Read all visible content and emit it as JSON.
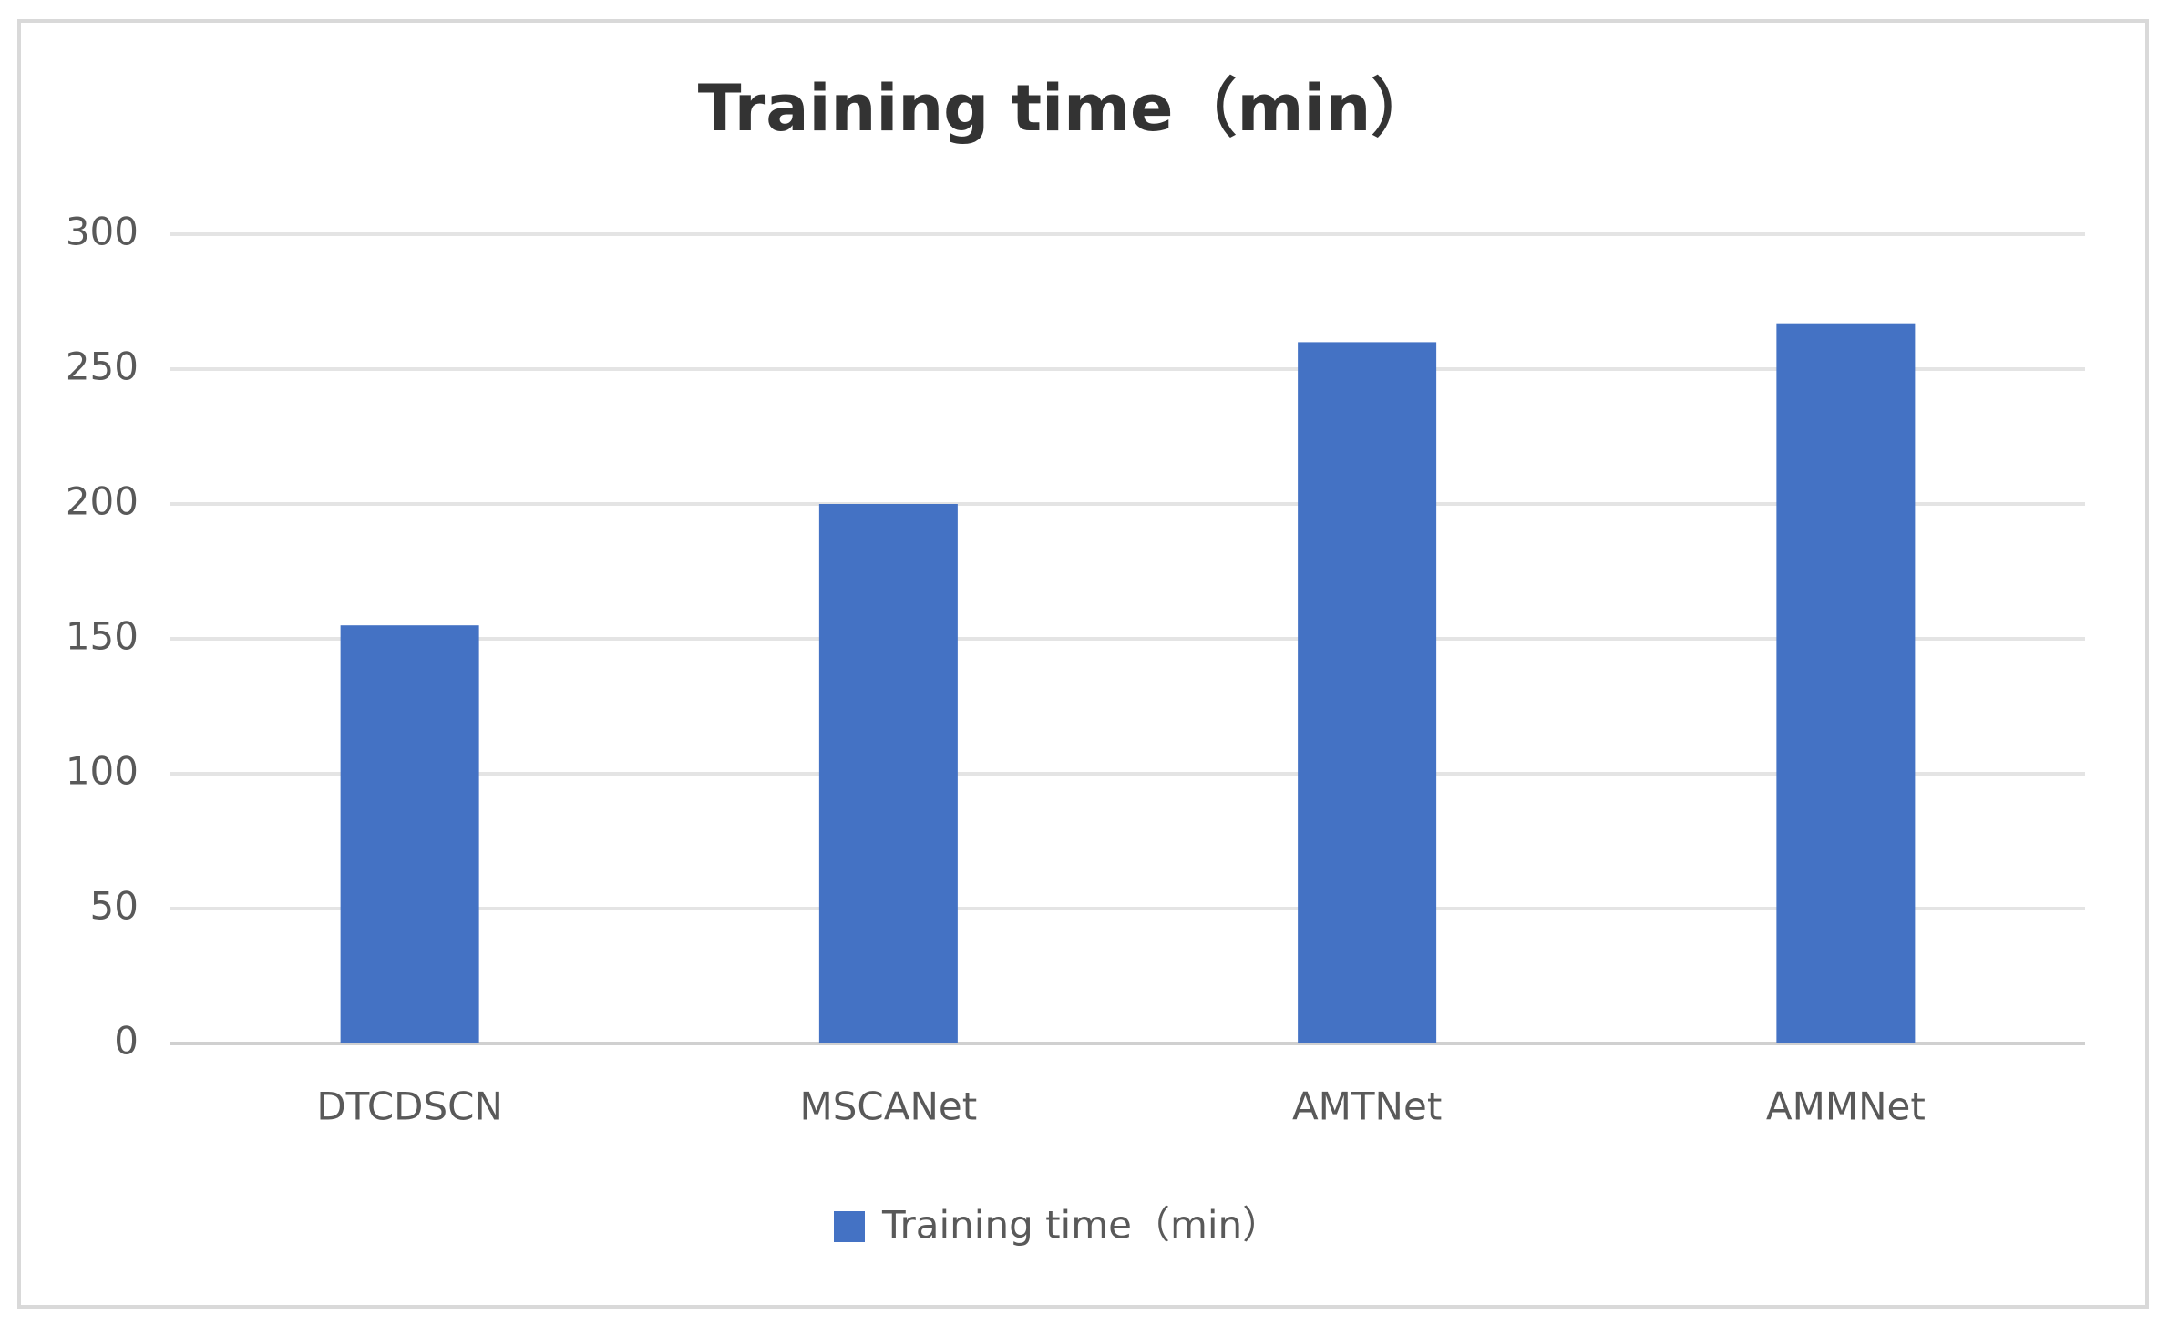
{
  "chart_data": {
    "type": "bar",
    "title": "Training time（min）",
    "categories": [
      "DTCDSCN",
      "MSCANet",
      "AMTNet",
      "AMMNet"
    ],
    "series": [
      {
        "name": "Training time（min）",
        "color": "#4472c4",
        "values": [
          155,
          200,
          260,
          267
        ]
      }
    ],
    "ylim": [
      0,
      300
    ],
    "yticks": [
      0,
      50,
      100,
      150,
      200,
      250,
      300
    ],
    "grid": true,
    "legend": "bottom"
  }
}
